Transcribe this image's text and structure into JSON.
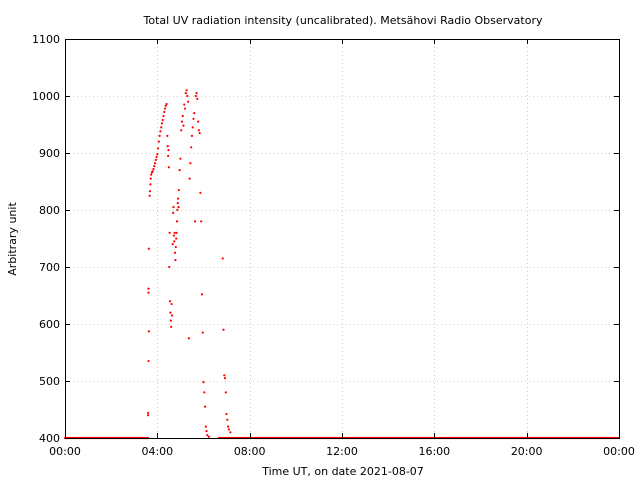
{
  "chart_data": {
    "type": "scatter",
    "title": "Total UV radiation intensity (uncalibrated). Metsähovi Radio Observatory",
    "xlabel": "Time UT, on date 2021-08-07",
    "ylabel": "Arbitrary unit",
    "xlim": [
      "00:00",
      "24:00"
    ],
    "ylim": [
      400,
      1100
    ],
    "x_ticks": [
      "00:00",
      "04:00",
      "08:00",
      "12:00",
      "16:00",
      "20:00",
      "00:00"
    ],
    "y_ticks": [
      400,
      500,
      600,
      700,
      800,
      900,
      1000,
      1100
    ],
    "grid": true,
    "point_color": "#ff0000",
    "series": [
      {
        "baseline_value": 400,
        "baseline_segments": [
          [
            "00:00",
            "03:36"
          ],
          [
            "06:40",
            "24:00"
          ]
        ],
        "points": [
          [
            "03:36",
            440
          ],
          [
            "03:36",
            444
          ],
          [
            "03:37",
            535
          ],
          [
            "03:37",
            655
          ],
          [
            "03:37",
            662
          ],
          [
            "03:38",
            587
          ],
          [
            "03:38",
            732
          ],
          [
            "03:40",
            825
          ],
          [
            "03:41",
            833
          ],
          [
            "03:42",
            845
          ],
          [
            "03:43",
            855
          ],
          [
            "03:44",
            862
          ],
          [
            "03:46",
            866
          ],
          [
            "03:48",
            868
          ],
          [
            "03:50",
            872
          ],
          [
            "03:52",
            877
          ],
          [
            "03:54",
            882
          ],
          [
            "03:56",
            888
          ],
          [
            "03:58",
            893
          ],
          [
            "04:00",
            898
          ],
          [
            "04:02",
            908
          ],
          [
            "04:04",
            920
          ],
          [
            "04:06",
            930
          ],
          [
            "04:08",
            938
          ],
          [
            "04:10",
            945
          ],
          [
            "04:12",
            952
          ],
          [
            "04:14",
            958
          ],
          [
            "04:16",
            965
          ],
          [
            "04:18",
            972
          ],
          [
            "04:20",
            978
          ],
          [
            "04:22",
            983
          ],
          [
            "04:24",
            986
          ],
          [
            "04:26",
            930
          ],
          [
            "04:27",
            912
          ],
          [
            "04:28",
            895
          ],
          [
            "04:29",
            905
          ],
          [
            "04:30",
            875
          ],
          [
            "04:31",
            700
          ],
          [
            "04:32",
            760
          ],
          [
            "04:33",
            640
          ],
          [
            "04:34",
            620
          ],
          [
            "04:35",
            606
          ],
          [
            "04:36",
            595
          ],
          [
            "04:37",
            635
          ],
          [
            "04:38",
            615
          ],
          [
            "04:40",
            740
          ],
          [
            "04:41",
            795
          ],
          [
            "04:42",
            805
          ],
          [
            "04:43",
            755
          ],
          [
            "04:44",
            745
          ],
          [
            "04:45",
            760
          ],
          [
            "04:46",
            725
          ],
          [
            "04:47",
            712
          ],
          [
            "04:48",
            735
          ],
          [
            "04:49",
            750
          ],
          [
            "04:50",
            760
          ],
          [
            "04:51",
            780
          ],
          [
            "04:52",
            800
          ],
          [
            "04:53",
            812
          ],
          [
            "04:54",
            820
          ],
          [
            "04:55",
            805
          ],
          [
            "04:56",
            835
          ],
          [
            "04:58",
            870
          ],
          [
            "05:00",
            890
          ],
          [
            "05:02",
            940
          ],
          [
            "05:04",
            955
          ],
          [
            "05:06",
            965
          ],
          [
            "05:08",
            948
          ],
          [
            "05:10",
            985
          ],
          [
            "05:12",
            978
          ],
          [
            "05:14",
            1005
          ],
          [
            "05:16",
            1010
          ],
          [
            "05:18",
            1000
          ],
          [
            "05:20",
            990
          ],
          [
            "05:22",
            575
          ],
          [
            "05:24",
            855
          ],
          [
            "05:26",
            882
          ],
          [
            "05:28",
            910
          ],
          [
            "05:30",
            930
          ],
          [
            "05:32",
            945
          ],
          [
            "05:34",
            960
          ],
          [
            "05:36",
            970
          ],
          [
            "05:38",
            780
          ],
          [
            "05:40",
            1000
          ],
          [
            "05:42",
            1005
          ],
          [
            "05:44",
            995
          ],
          [
            "05:46",
            955
          ],
          [
            "05:48",
            940
          ],
          [
            "05:50",
            935
          ],
          [
            "05:52",
            830
          ],
          [
            "05:54",
            780
          ],
          [
            "05:56",
            652
          ],
          [
            "05:58",
            585
          ],
          [
            "06:00",
            498
          ],
          [
            "06:02",
            480
          ],
          [
            "06:04",
            455
          ],
          [
            "06:06",
            420
          ],
          [
            "06:08",
            412
          ],
          [
            "06:10",
            405
          ],
          [
            "06:14",
            402
          ],
          [
            "06:50",
            715
          ],
          [
            "06:52",
            590
          ],
          [
            "06:54",
            510
          ],
          [
            "06:56",
            505
          ],
          [
            "06:58",
            480
          ],
          [
            "07:00",
            442
          ],
          [
            "07:02",
            432
          ],
          [
            "07:04",
            420
          ],
          [
            "07:06",
            415
          ],
          [
            "07:10",
            410
          ]
        ]
      }
    ]
  }
}
